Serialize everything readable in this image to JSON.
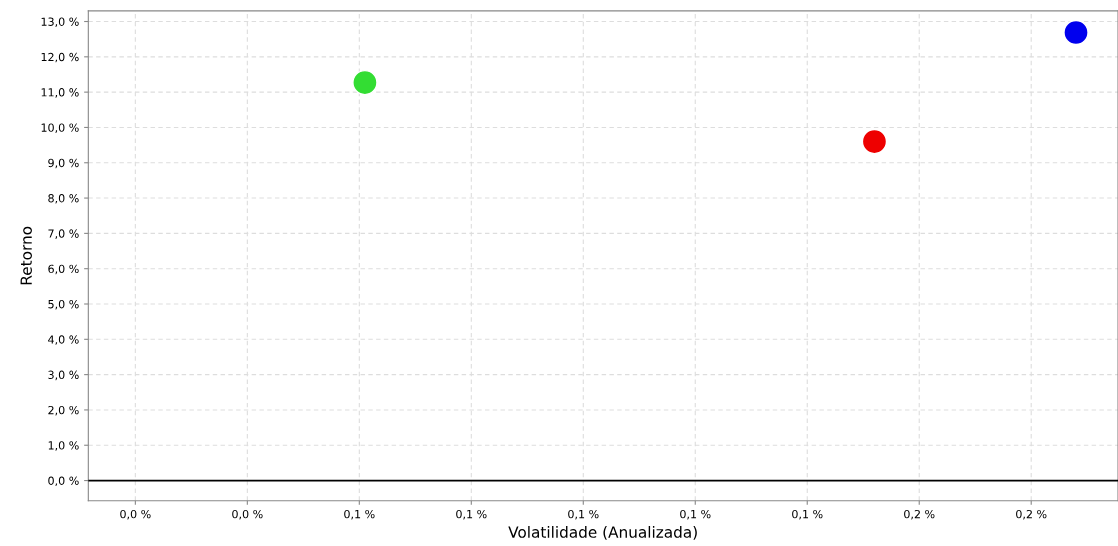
{
  "chart_data": {
    "type": "scatter",
    "xlabel": "Volatilidade (Anualizada)",
    "ylabel": "Retorno",
    "series": [
      {
        "color": "#33dd33",
        "x": [
          0.061
        ],
        "values": [
          11.27
        ]
      },
      {
        "color": "#ee0000",
        "x": [
          0.152
        ],
        "values": [
          9.6
        ]
      },
      {
        "color": "#0000ee",
        "x": [
          0.188
        ],
        "values": [
          12.69
        ]
      }
    ],
    "xlim": [
      0.0116,
      0.1955
    ],
    "xticks": [
      {
        "value": 0.02,
        "label": "0,0 %"
      },
      {
        "value": 0.04,
        "label": "0,0 %"
      },
      {
        "value": 0.06,
        "label": "0,1 %"
      },
      {
        "value": 0.08,
        "label": "0,1 %"
      },
      {
        "value": 0.1,
        "label": "0,1 %"
      },
      {
        "value": 0.12,
        "label": "0,1 %"
      },
      {
        "value": 0.14,
        "label": "0,1 %"
      },
      {
        "value": 0.16,
        "label": "0,2 %"
      },
      {
        "value": 0.18,
        "label": "0,2 %"
      }
    ],
    "ylim": [
      -0.57,
      13.3
    ],
    "yticks": [
      {
        "value": 0,
        "label": "0,0 %"
      },
      {
        "value": 1,
        "label": "1,0 %"
      },
      {
        "value": 2,
        "label": "2,0 %"
      },
      {
        "value": 3,
        "label": "3,0 %"
      },
      {
        "value": 4,
        "label": "4,0 %"
      },
      {
        "value": 5,
        "label": "5,0 %"
      },
      {
        "value": 6,
        "label": "6,0 %"
      },
      {
        "value": 7,
        "label": "7,0 %"
      },
      {
        "value": 8,
        "label": "8,0 %"
      },
      {
        "value": 9,
        "label": "9,0 %"
      },
      {
        "value": 10,
        "label": "10,0 %"
      },
      {
        "value": 11,
        "label": "11,0 %"
      },
      {
        "value": 12,
        "label": "12,0 %"
      },
      {
        "value": 13,
        "label": "13,0 %"
      }
    ],
    "ref_lines": [
      {
        "axis": "y",
        "value": 0,
        "color": "#000000"
      }
    ],
    "grid": true,
    "marker": "circle"
  }
}
